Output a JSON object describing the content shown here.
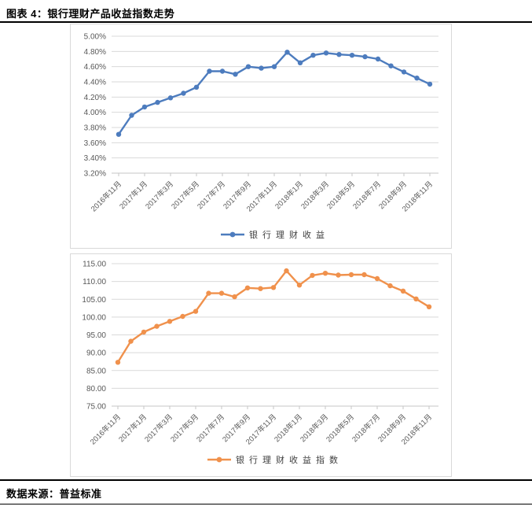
{
  "header": {
    "title": "图表 4：银行理财产品收益指数走势"
  },
  "footer": {
    "source": "数据来源：普益标准"
  },
  "colors": {
    "accent_blue": "#4d7cbe",
    "accent_orange": "#f0914c",
    "grid": "#d9d9d9",
    "axis_line": "#c6c6c6",
    "tick_text": "#595959",
    "legend_text": "#404040",
    "chart_border": "#d9d9d9",
    "rule_black": "#000000"
  },
  "chart_data": [
    {
      "type": "line",
      "title": "",
      "legend": "银行理财收益",
      "legend_position": "bottom",
      "grid": true,
      "color_key": "accent_blue",
      "marker": "circle",
      "x_tick_labels": [
        "2016年11月",
        "2017年1月",
        "2017年3月",
        "2017年5月",
        "2017年7月",
        "2017年9月",
        "2017年11月",
        "2018年1月",
        "2018年3月",
        "2018年5月",
        "2018年7月",
        "2018年9月",
        "2018年11月"
      ],
      "points_per_tick": 2,
      "y_ticks": [
        "5.00%",
        "4.80%",
        "4.60%",
        "4.40%",
        "4.20%",
        "4.00%",
        "3.80%",
        "3.60%",
        "3.40%",
        "3.20%"
      ],
      "ylim": [
        3.2,
        5.0
      ],
      "values": [
        3.71,
        3.96,
        4.07,
        4.13,
        4.19,
        4.25,
        4.33,
        4.54,
        4.54,
        4.5,
        4.6,
        4.58,
        4.6,
        4.79,
        4.65,
        4.75,
        4.78,
        4.76,
        4.75,
        4.73,
        4.7,
        4.61,
        4.53,
        4.45,
        4.37
      ]
    },
    {
      "type": "line",
      "title": "",
      "legend": "银行理财收益指数",
      "legend_position": "bottom",
      "grid": true,
      "color_key": "accent_orange",
      "marker": "circle",
      "x_tick_labels": [
        "2016年11月",
        "2017年1月",
        "2017年3月",
        "2017年5月",
        "2017年7月",
        "2017年9月",
        "2017年11月",
        "2018年1月",
        "2018年3月",
        "2018年5月",
        "2018年7月",
        "2018年9月",
        "2018年11月"
      ],
      "points_per_tick": 2,
      "y_ticks": [
        "115.00",
        "110.00",
        "105.00",
        "100.00",
        "95.00",
        "90.00",
        "85.00",
        "80.00",
        "75.00"
      ],
      "ylim": [
        75.0,
        115.0
      ],
      "values": [
        87.3,
        93.2,
        95.8,
        97.4,
        98.8,
        100.2,
        101.6,
        106.7,
        106.7,
        105.7,
        108.2,
        108.0,
        108.3,
        113.0,
        109.0,
        111.7,
        112.3,
        111.8,
        111.9,
        111.9,
        110.8,
        108.8,
        107.3,
        105.1,
        102.9
      ]
    }
  ]
}
